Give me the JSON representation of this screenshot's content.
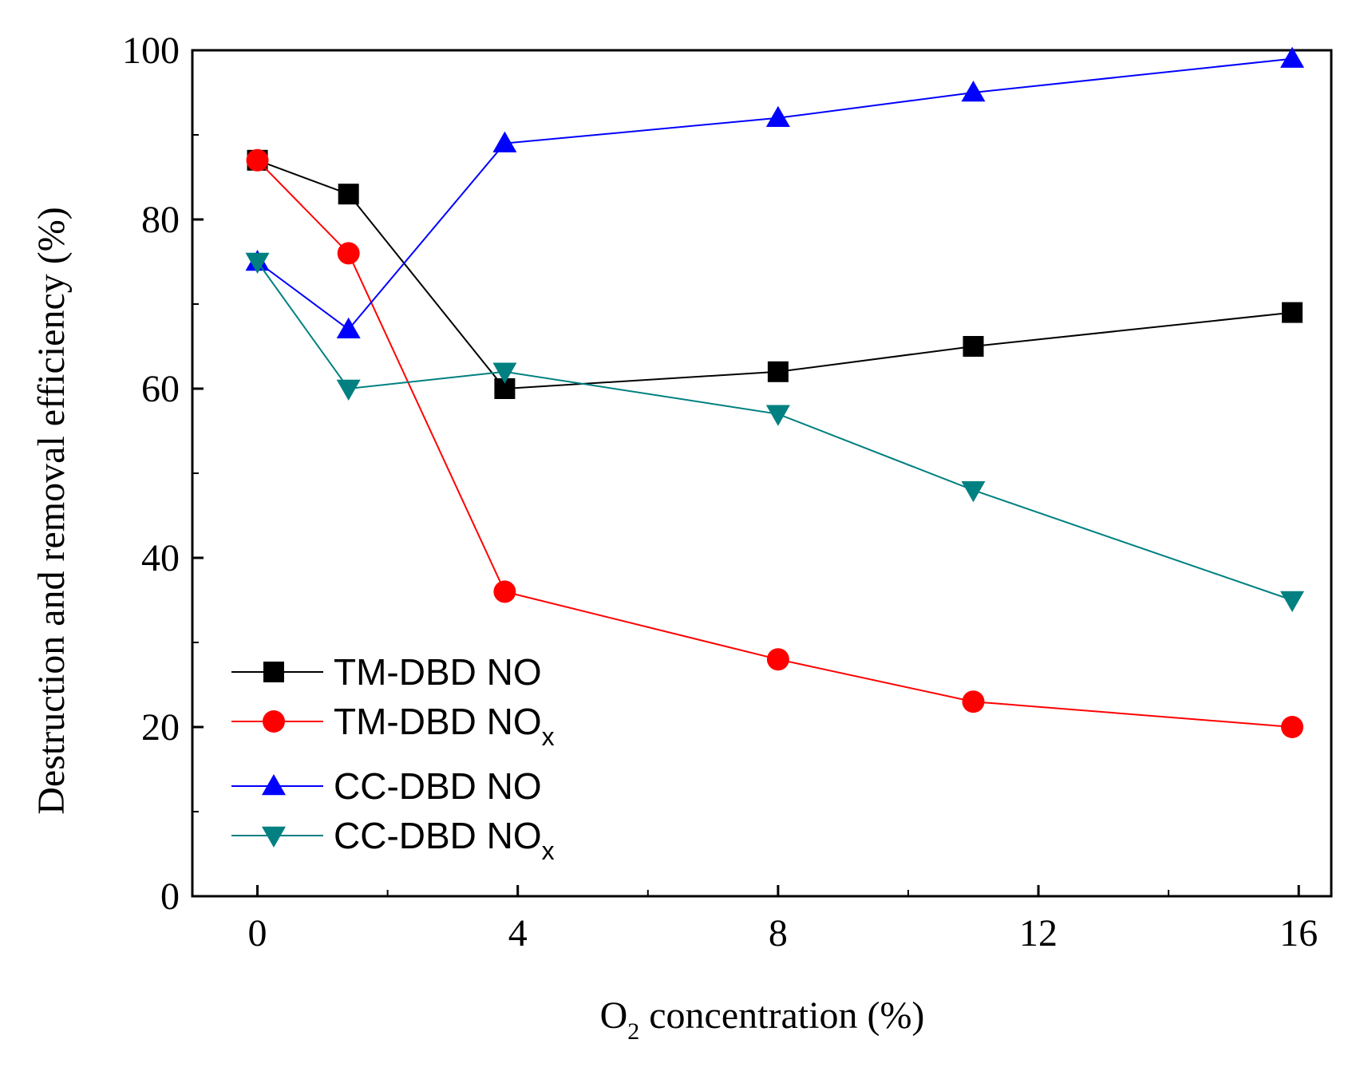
{
  "chart_data": {
    "type": "line",
    "title": "",
    "xlabel": {
      "main": "O",
      "sub": "2",
      "rest": " concentration (%)"
    },
    "ylabel": "Destruction and removal efficiency (%)",
    "xlim": [
      -1,
      16.5
    ],
    "ylim": [
      0,
      100
    ],
    "xticks": [
      0,
      4,
      8,
      12,
      16
    ],
    "yticks": [
      0,
      20,
      40,
      60,
      80,
      100
    ],
    "grid": false,
    "legend_position": "bottom-left",
    "series": [
      {
        "name": "TM-DBD NO",
        "label_main": "TM-DBD NO",
        "label_sub": "",
        "color": "#000000",
        "marker": "square",
        "x": [
          0,
          1.4,
          3.8,
          8,
          11,
          15.9
        ],
        "y": [
          87,
          83,
          60,
          62,
          65,
          69
        ]
      },
      {
        "name": "TM-DBD NOx",
        "label_main": "TM-DBD NO",
        "label_sub": "x",
        "color": "#ff0000",
        "marker": "circle",
        "x": [
          0,
          1.4,
          3.8,
          8,
          11,
          15.9
        ],
        "y": [
          87,
          76,
          36,
          28,
          23,
          20
        ]
      },
      {
        "name": "CC-DBD NO",
        "label_main": "CC-DBD NO",
        "label_sub": "",
        "color": "#0000ff",
        "marker": "triangle-up",
        "x": [
          0,
          1.4,
          3.8,
          8,
          11,
          15.9
        ],
        "y": [
          75,
          67,
          89,
          92,
          95,
          99
        ]
      },
      {
        "name": "CC-DBD NOx",
        "label_main": "CC-DBD NO",
        "label_sub": "x",
        "color": "#008080",
        "marker": "triangle-down",
        "x": [
          0,
          1.4,
          3.8,
          8,
          11,
          15.9
        ],
        "y": [
          75,
          60,
          62,
          57,
          48,
          35
        ]
      }
    ]
  }
}
